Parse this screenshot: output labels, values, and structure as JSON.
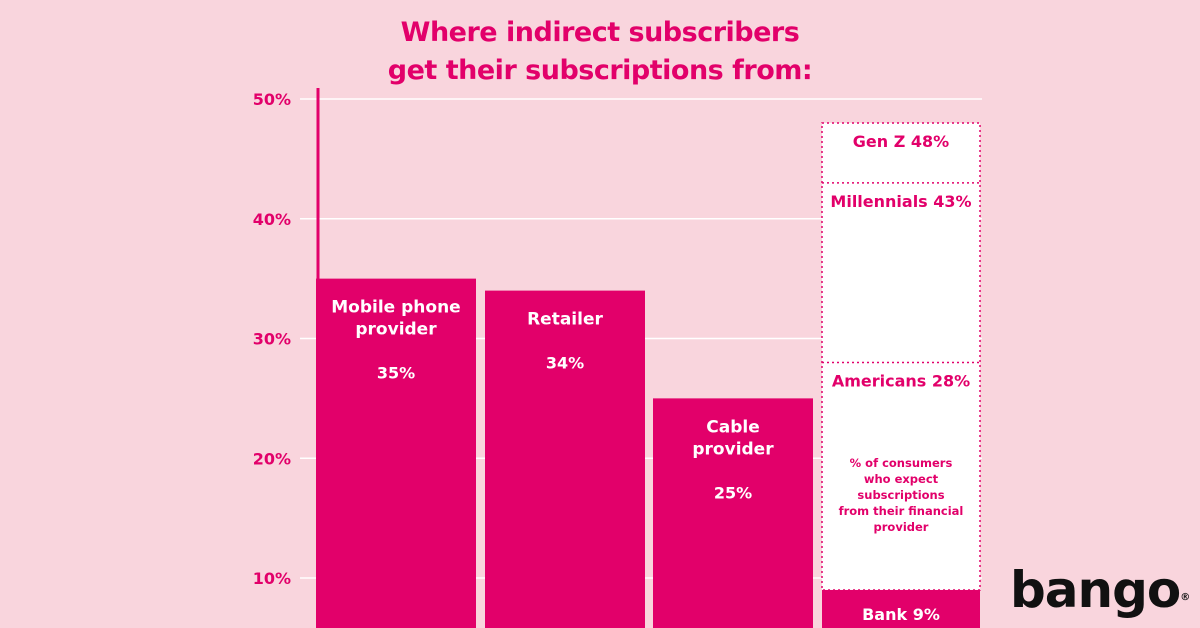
{
  "title_line1": "Where indirect subscribers",
  "title_line2": "get their subscriptions from:",
  "logo": "bango",
  "chart_data": {
    "type": "bar",
    "title": "Where indirect subscribers get their subscriptions from:",
    "ylim": [
      0,
      50
    ],
    "yticks": [
      10,
      20,
      30,
      40,
      50
    ],
    "ytick_labels": [
      "10%",
      "20%",
      "30%",
      "40%",
      "50%"
    ],
    "grid": true,
    "bars": [
      {
        "label": [
          "Mobile phone",
          "provider"
        ],
        "value": 35,
        "value_label": "35%"
      },
      {
        "label": [
          "Retailer"
        ],
        "value": 34,
        "value_label": "34%"
      },
      {
        "label": [
          "Cable",
          "provider"
        ],
        "value": 25,
        "value_label": "25%"
      }
    ],
    "financial_provider": {
      "note": [
        "% of consumers",
        "who expect",
        "subscriptions",
        "from their financial",
        "provider"
      ],
      "bank": {
        "label": "Bank 9%",
        "value": 9
      },
      "segments": [
        {
          "label": "Gen Z 48%",
          "value": 48
        },
        {
          "label": "Millennials 43%",
          "value": 43
        },
        {
          "label": "Americans 28%",
          "value": 28
        }
      ]
    }
  },
  "colors": {
    "background": "#f9d5dd",
    "accent": "#e2006a",
    "white": "#ffffff",
    "logo": "#111111"
  }
}
